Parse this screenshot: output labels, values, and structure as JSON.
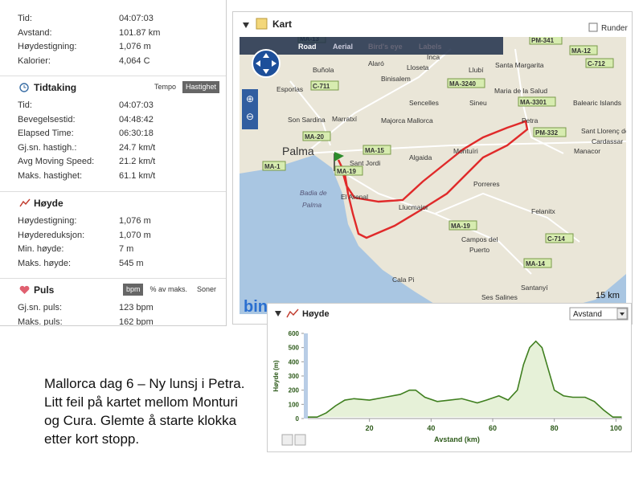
{
  "summary": {
    "rows": [
      {
        "label": "Tid:",
        "value": "04:07:03"
      },
      {
        "label": "Avstand:",
        "value": "101.87 km"
      },
      {
        "label": "Høydestigning:",
        "value": "1,076 m"
      },
      {
        "label": "Kalorier:",
        "value": "4,064 C"
      }
    ]
  },
  "timing": {
    "title": "Tidtaking",
    "tabs": [
      "Tempo",
      "Hastighet"
    ],
    "rows": [
      {
        "label": "Tid:",
        "value": "04:07:03"
      },
      {
        "label": "Bevegelsestid:",
        "value": "04:48:42"
      },
      {
        "label": "Elapsed Time:",
        "value": "06:30:18"
      },
      {
        "label": "Gj.sn. hastigh.:",
        "value": "24.7 km/t"
      },
      {
        "label": "Avg Moving Speed:",
        "value": "21.2 km/t"
      },
      {
        "label": "Maks. hastighet:",
        "value": "61.1 km/t"
      }
    ]
  },
  "height": {
    "title": "Høyde",
    "rows": [
      {
        "label": "Høydestigning:",
        "value": "1,076 m"
      },
      {
        "label": "Høydereduksjon:",
        "value": "1,070 m"
      },
      {
        "label": "Min. høyde:",
        "value": "7 m"
      },
      {
        "label": "Maks. høyde:",
        "value": "545 m"
      }
    ]
  },
  "pulse": {
    "title": "Puls",
    "tabs": [
      "bpm",
      "% av maks.",
      "Soner"
    ],
    "rows": [
      {
        "label": "Gj.sn. puls:",
        "value": "123 bpm"
      },
      {
        "label": "Maks. puls:",
        "value": "162 bpm"
      }
    ]
  },
  "map": {
    "title": "Kart",
    "laps_label": "Runder",
    "tabs": [
      "Road",
      "Aerial",
      "Bird's eye",
      "Labels"
    ],
    "labels": [
      "MA-13",
      "Inca",
      "PM-341",
      "MA-12",
      "Buñola",
      "Alaró",
      "Lloseta",
      "Santa Margarita",
      "C-712",
      "Esporlas",
      "C-711",
      "Binisalem",
      "MA-3240",
      "Llubí",
      "Maria de la Salud",
      "Balearic Islands",
      "MA-3301",
      "Sencelles",
      "Sineu",
      "MA-20",
      "Son Sardina",
      "Marratxí",
      "Majorca Mallorca",
      "PM-332",
      "Petra",
      "Sant Llorenç des",
      "Cardassar",
      "Palma",
      "MA-15",
      "Montuïri",
      "Manacor",
      "MA-1",
      "MA-19",
      "Sant Jordi",
      "Algaida",
      "Porreres",
      "Badia de",
      "Palma",
      "El Arenal",
      "Llucmajor",
      "Felanitx",
      "MA-19",
      "Campos del",
      "Puerto",
      "C-714",
      "MA-14",
      "Cala Pi",
      "Santanyí",
      "Ses Salines"
    ],
    "scale": "15 km",
    "logo": "bing"
  },
  "elevation_panel": {
    "title": "Høyde",
    "dropdown": "Avstand"
  },
  "chart_data": {
    "type": "line",
    "x": [
      0,
      3,
      6,
      9,
      12,
      15,
      20,
      25,
      30,
      33,
      35,
      38,
      42,
      46,
      50,
      55,
      58,
      62,
      65,
      68,
      70,
      72,
      74,
      76,
      78,
      80,
      83,
      86,
      90,
      93,
      96,
      99,
      101.87
    ],
    "values": [
      10,
      10,
      40,
      90,
      130,
      140,
      130,
      150,
      170,
      200,
      200,
      150,
      120,
      130,
      140,
      110,
      130,
      160,
      130,
      200,
      380,
      500,
      545,
      500,
      350,
      200,
      160,
      150,
      150,
      120,
      60,
      10,
      10
    ],
    "color": "#3f7f1f",
    "xlabel": "Avstand (km)",
    "ylabel": "Høyde (m)",
    "xlim": [
      0,
      102
    ],
    "ylim": [
      0,
      600
    ],
    "xticks": [
      20,
      40,
      60,
      80,
      100
    ],
    "yticks": [
      0,
      100,
      200,
      300,
      400,
      500,
      600
    ]
  },
  "caption": [
    "Mallorca dag 6 – Ny lunsj i Petra.",
    "Litt feil på kartet mellom Monturi",
    "og Cura. Glemte å starte klokka",
    "etter kort stopp."
  ]
}
